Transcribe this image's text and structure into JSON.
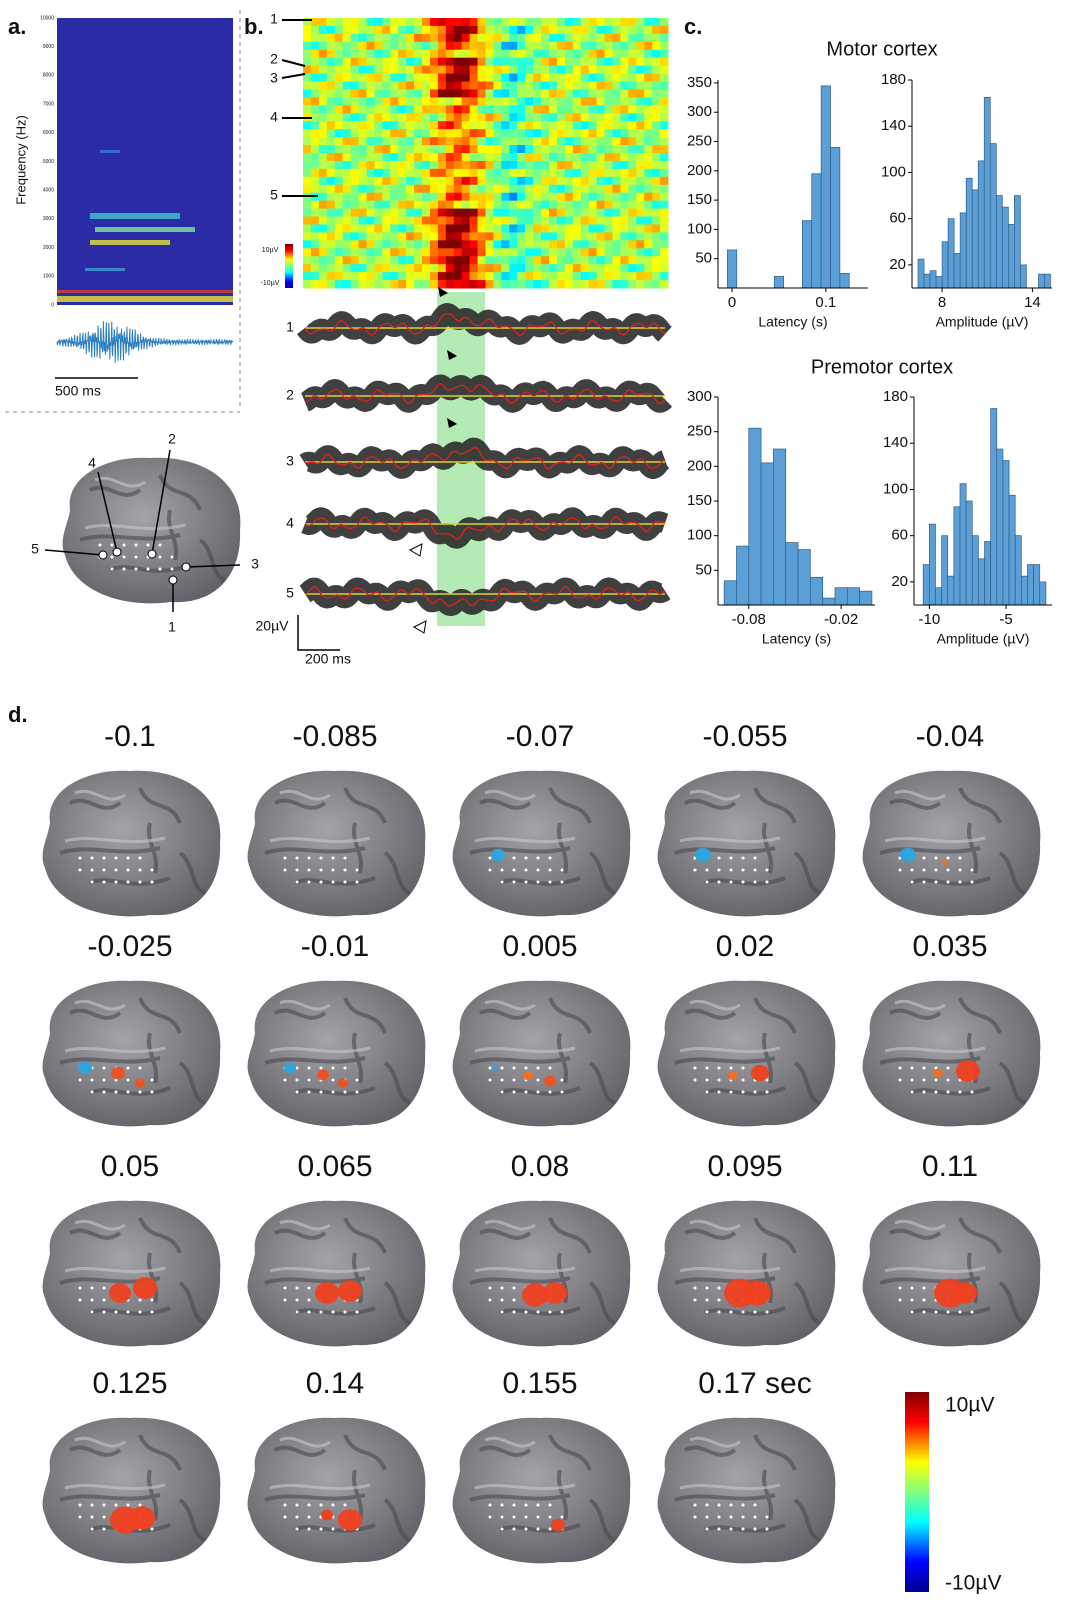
{
  "panel_a": {
    "label": "a.",
    "ylabel": "Frequency (Hz)",
    "freq_ticks": [
      "0",
      "1000",
      "2000",
      "3000",
      "4000",
      "5000",
      "6000",
      "7000",
      "8000",
      "9000",
      "10000"
    ],
    "scale_label": "500 ms",
    "electrodes": [
      "1",
      "2",
      "3",
      "4",
      "5"
    ]
  },
  "panel_b": {
    "label": "b.",
    "rows": [
      "1",
      "2",
      "3",
      "4",
      "5"
    ],
    "colorbar_max": "10µV",
    "colorbar_min": "-10µV",
    "traces": [
      "1",
      "2",
      "3",
      "4",
      "5"
    ],
    "scale_y": "20µV",
    "scale_x": "200 ms"
  },
  "panel_c": {
    "label": "c.",
    "motor_title": "Motor cortex",
    "premotor_title": "Premotor cortex"
  },
  "chart_data": [
    {
      "type": "histogram",
      "xlabel": "Latency (s)",
      "color": "#5b9fd6",
      "bins": [
        -0.005,
        0.005,
        0.015,
        0.025,
        0.035,
        0.045,
        0.055,
        0.065,
        0.075,
        0.085,
        0.095,
        0.105,
        0.115,
        0.125
      ],
      "counts": [
        65,
        0,
        0,
        0,
        0,
        20,
        0,
        0,
        115,
        195,
        345,
        240,
        25
      ],
      "xlim": [
        -0.015,
        0.145
      ],
      "ylim": [
        0,
        355
      ],
      "xticks": [
        0,
        0.1
      ],
      "yticks": [
        50,
        100,
        150,
        200,
        250,
        300,
        350
      ]
    },
    {
      "type": "histogram",
      "xlabel": "Amplitude (µV)",
      "color": "#5b9fd6",
      "bins": [
        6.4,
        6.8,
        7.2,
        7.6,
        8,
        8.4,
        8.8,
        9.2,
        9.6,
        10,
        10.4,
        10.8,
        11.2,
        11.6,
        12,
        12.4,
        12.8,
        13.2,
        13.6,
        14,
        14.4,
        14.8,
        15.2
      ],
      "counts": [
        25,
        12,
        15,
        10,
        40,
        60,
        30,
        65,
        95,
        85,
        110,
        165,
        125,
        80,
        70,
        55,
        80,
        20,
        0,
        0,
        12,
        12
      ],
      "xlim": [
        6,
        15.3
      ],
      "ylim": [
        0,
        180
      ],
      "xticks": [
        8,
        14
      ],
      "yticks": [
        20,
        60,
        100,
        140,
        180
      ]
    },
    {
      "type": "histogram",
      "xlabel": "Latency (s)",
      "color": "#5b9fd6",
      "bins": [
        -0.096,
        -0.088,
        -0.08,
        -0.072,
        -0.064,
        -0.056,
        -0.048,
        -0.04,
        -0.032,
        -0.024,
        -0.016,
        -0.008,
        0
      ],
      "counts": [
        35,
        85,
        255,
        205,
        225,
        90,
        80,
        40,
        10,
        25,
        25,
        20
      ],
      "xlim": [
        -0.1,
        0.002
      ],
      "ylim": [
        0,
        300
      ],
      "xticks": [
        -0.08,
        -0.02
      ],
      "yticks": [
        50,
        100,
        150,
        200,
        250,
        300
      ]
    },
    {
      "type": "histogram",
      "xlabel": "Amplitude (µV)",
      "color": "#5b9fd6",
      "bins": [
        -10.8,
        -10.4,
        -10,
        -9.6,
        -9.2,
        -8.8,
        -8.4,
        -8,
        -7.6,
        -7.2,
        -6.8,
        -6.4,
        -6,
        -5.6,
        -5.2,
        -4.8,
        -4.4,
        -4,
        -3.6,
        -3.2,
        -2.8,
        -2.4,
        -2
      ],
      "counts": [
        0,
        35,
        70,
        15,
        60,
        25,
        85,
        105,
        90,
        60,
        40,
        55,
        170,
        135,
        125,
        95,
        60,
        25,
        35,
        35,
        20,
        0
      ],
      "xlim": [
        -11,
        -2
      ],
      "ylim": [
        0,
        180
      ],
      "xticks": [
        -10,
        -5
      ],
      "yticks": [
        20,
        60,
        100,
        140,
        180
      ]
    }
  ],
  "panel_d": {
    "label": "d.",
    "times": [
      "-0.1",
      "-0.085",
      "-0.07",
      "-0.055",
      "-0.04",
      "-0.025",
      "-0.01",
      "0.005",
      "0.02",
      "0.035",
      "0.05",
      "0.065",
      "0.08",
      "0.095",
      "0.11",
      "0.125",
      "0.14",
      "0.155",
      "0.17 sec"
    ],
    "colorbar_max": "10µV",
    "colorbar_min": "-10µV"
  }
}
